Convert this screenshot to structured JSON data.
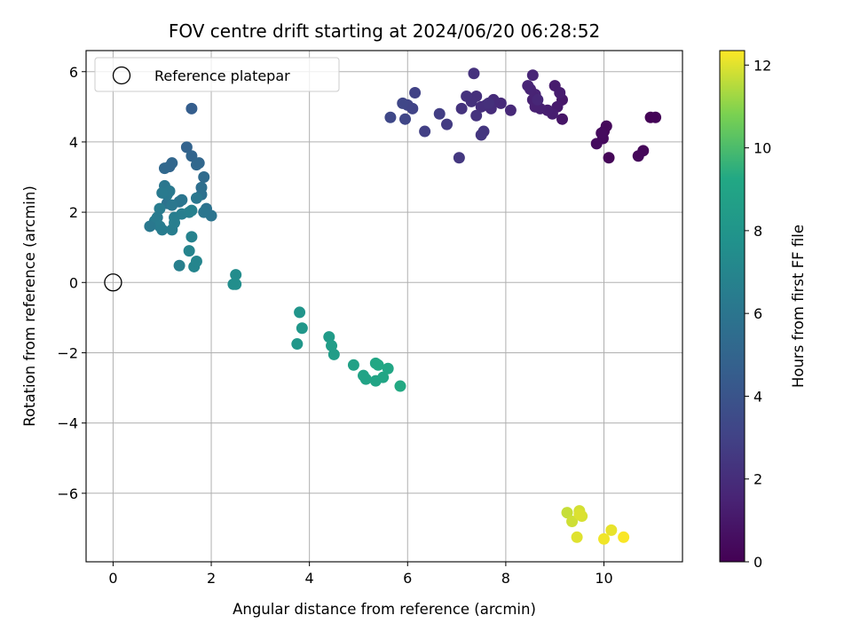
{
  "chart_data": {
    "type": "scatter",
    "title": "FOV centre drift starting at 2024/06/20 06:28:52",
    "xlabel": "Angular distance from reference (arcmin)",
    "ylabel": "Rotation from reference (arcmin)",
    "xlim": [
      -0.55,
      11.6
    ],
    "ylim": [
      -7.95,
      6.6
    ],
    "xticks": [
      0,
      2,
      4,
      6,
      8,
      10
    ],
    "yticks": [
      -6,
      -4,
      -2,
      0,
      2,
      4,
      6
    ],
    "grid": true,
    "legend": {
      "placement": "top-left",
      "entries": [
        "Reference platepar"
      ]
    },
    "reference_point": {
      "x": 0,
      "y": 0,
      "label": "Reference platepar"
    },
    "colorbar": {
      "label": "Hours from first FF file",
      "colormap": "viridis",
      "range": [
        0,
        12.35
      ],
      "ticks": [
        0,
        2,
        4,
        6,
        8,
        10,
        12
      ]
    },
    "series": [
      {
        "x": [
          10.95,
          11.05,
          10.0,
          10.05,
          9.98,
          9.95,
          9.85,
          10.1,
          10.8,
          10.7
        ],
        "y": [
          4.7,
          4.7,
          4.3,
          4.45,
          4.1,
          4.25,
          3.95,
          3.55,
          3.75,
          3.6
        ],
        "c": [
          0.1,
          0.15,
          0.3,
          0.35,
          0.4,
          0.45,
          0.5,
          0.2,
          0.25,
          0.3
        ]
      },
      {
        "x": [
          9.15,
          9.15,
          9.05,
          9.0,
          9.1,
          8.95,
          8.85,
          8.7,
          8.6,
          8.55,
          8.6,
          8.5,
          8.45,
          8.55,
          8.65
        ],
        "y": [
          4.65,
          5.2,
          5.0,
          5.6,
          5.4,
          4.8,
          4.9,
          4.95,
          5.0,
          5.2,
          5.35,
          5.5,
          5.6,
          5.9,
          5.2
        ],
        "c": [
          0.9,
          1.0,
          1.1,
          1.15,
          1.2,
          1.25,
          1.3,
          1.35,
          1.4,
          1.45,
          1.5,
          1.55,
          1.6,
          1.65,
          1.7
        ]
      },
      {
        "x": [
          8.1,
          7.9,
          7.75,
          7.7,
          7.6,
          7.5,
          7.4,
          7.3,
          7.2,
          7.1,
          7.4,
          7.55,
          7.5,
          7.65,
          7.35
        ],
        "y": [
          4.9,
          5.1,
          5.2,
          4.95,
          5.05,
          5.0,
          5.3,
          5.15,
          5.3,
          4.95,
          4.75,
          4.3,
          4.2,
          5.1,
          5.95
        ],
        "c": [
          1.8,
          1.85,
          1.9,
          1.95,
          2.0,
          2.05,
          2.1,
          2.15,
          2.2,
          2.25,
          2.3,
          2.35,
          2.4,
          2.1,
          2.2
        ]
      },
      {
        "x": [
          7.05,
          6.8,
          6.65,
          6.35,
          6.15,
          6.1,
          6.0,
          5.95,
          5.9,
          5.65
        ],
        "y": [
          3.55,
          4.5,
          4.8,
          4.3,
          5.4,
          4.95,
          5.05,
          4.65,
          5.1,
          4.7
        ],
        "c": [
          2.5,
          2.7,
          2.8,
          2.9,
          3.0,
          3.1,
          3.15,
          3.2,
          3.25,
          3.3
        ]
      },
      {
        "x": [
          1.6,
          1.5,
          1.6,
          1.75,
          1.7,
          1.85,
          1.8,
          1.8,
          1.9,
          2.0,
          1.85,
          1.7,
          1.15,
          1.2,
          1.05,
          1.1,
          1.35,
          1.4,
          1.2
        ],
        "y": [
          4.95,
          3.85,
          3.6,
          3.4,
          3.35,
          3.0,
          2.7,
          2.5,
          2.1,
          1.9,
          2.0,
          2.4,
          3.3,
          3.4,
          3.25,
          2.25,
          2.3,
          2.35,
          2.2
        ],
        "c": [
          4.6,
          4.9,
          5.0,
          5.1,
          5.2,
          5.4,
          5.6,
          5.7,
          5.8,
          5.9,
          6.0,
          6.1,
          5.0,
          5.1,
          5.2,
          5.8,
          5.9,
          6.0,
          6.1
        ]
      },
      {
        "x": [
          1.05,
          1.1,
          1.15,
          1.0,
          0.95,
          1.25,
          1.4,
          1.55,
          1.6,
          0.9,
          0.85,
          0.95,
          1.0,
          1.2,
          1.25,
          0.75,
          1.6,
          1.55,
          1.65,
          1.7,
          1.35
        ],
        "y": [
          2.75,
          2.5,
          2.6,
          2.55,
          2.1,
          1.85,
          1.95,
          2.0,
          2.05,
          1.85,
          1.75,
          1.6,
          1.5,
          1.5,
          1.7,
          1.6,
          1.3,
          0.9,
          0.45,
          0.6,
          0.48
        ],
        "c": [
          6.1,
          6.2,
          6.25,
          6.3,
          6.4,
          6.5,
          6.55,
          6.6,
          6.65,
          6.3,
          6.35,
          6.4,
          6.45,
          6.5,
          6.55,
          6.2,
          6.8,
          6.9,
          6.95,
          7.0,
          6.6
        ]
      },
      {
        "x": [
          2.5,
          2.45,
          2.5,
          3.8,
          3.85,
          3.75,
          4.4,
          4.45,
          4.5,
          4.9,
          5.1,
          5.15,
          5.35,
          5.5,
          5.35,
          5.6,
          5.4,
          5.85
        ],
        "y": [
          0.22,
          -0.05,
          -0.05,
          -0.85,
          -1.3,
          -1.75,
          -1.55,
          -1.8,
          -2.05,
          -2.35,
          -2.65,
          -2.75,
          -2.8,
          -2.7,
          -2.3,
          -2.45,
          -2.35,
          -2.95
        ],
        "c": [
          7.4,
          7.5,
          7.55,
          8.0,
          8.1,
          8.15,
          8.4,
          8.5,
          8.55,
          8.8,
          8.9,
          8.95,
          9.0,
          9.05,
          9.1,
          9.15,
          9.2,
          9.3
        ]
      },
      {
        "x": [
          9.25,
          9.35,
          9.5,
          9.55,
          9.5,
          9.45,
          10.15,
          10.0,
          10.4
        ],
        "y": [
          -6.55,
          -6.8,
          -6.5,
          -6.65,
          -6.6,
          -7.25,
          -7.05,
          -7.3,
          -7.25
        ],
        "c": [
          11.7,
          11.8,
          11.85,
          11.9,
          11.95,
          12.0,
          12.1,
          12.2,
          12.3
        ]
      }
    ]
  }
}
